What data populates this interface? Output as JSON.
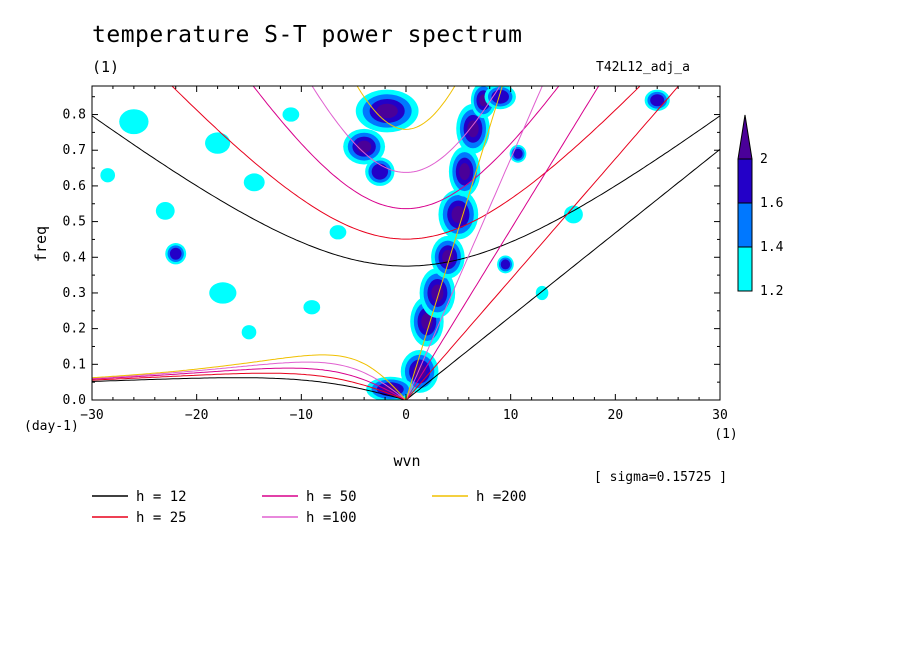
{
  "header": {
    "title": "temperature S-T power spectrum",
    "unit": "(1)",
    "run": "T42L12_adj_a",
    "sigma": "[ sigma=0.15725 ]"
  },
  "colors": {
    "h12": "#000000",
    "h25": "#e8001c",
    "h50": "#d8008c",
    "h100": "#e060d0",
    "h200": "#f0c000",
    "level_1": "#00ffff",
    "level_2": "#0078ff",
    "level_3": "#2300c8",
    "level_4": "#4a0099"
  },
  "chart_data": {
    "type": "heatmap",
    "xlabel": "wvn",
    "ylabel": "freq",
    "x_unit": "(1)",
    "y_unit": "(day-1)",
    "xlim": [
      -30,
      30
    ],
    "ylim": [
      0,
      0.88
    ],
    "x_ticks": [
      -30,
      -20,
      -10,
      0,
      10,
      20,
      30
    ],
    "y_ticks": [
      0.0,
      0.1,
      0.2,
      0.3,
      0.4,
      0.5,
      0.6,
      0.7,
      0.8
    ],
    "colorbar": {
      "levels": [
        "1.2",
        "1.4",
        "1.6",
        "2"
      ],
      "colors": [
        "#00ffff",
        "#0078ff",
        "#2300c8",
        "#4a0099"
      ]
    },
    "series": [
      {
        "name": "h = 12",
        "h": 12
      },
      {
        "name": "h = 25",
        "h": 25
      },
      {
        "name": "h = 50",
        "h": 50
      },
      {
        "name": "h =100",
        "h": 100
      },
      {
        "name": "h =200",
        "h": 200
      }
    ],
    "contour_patches": [
      {
        "x": 1.3,
        "y": 0.08,
        "rx": 1.8,
        "ry": 0.06,
        "level": 4
      },
      {
        "x": -1.5,
        "y": 0.03,
        "rx": 2.3,
        "ry": 0.035,
        "level": 4
      },
      {
        "x": 2.0,
        "y": 0.22,
        "rx": 1.6,
        "ry": 0.07,
        "level": 4
      },
      {
        "x": 3.0,
        "y": 0.3,
        "rx": 1.7,
        "ry": 0.07,
        "level": 4
      },
      {
        "x": 4.0,
        "y": 0.4,
        "rx": 1.6,
        "ry": 0.06,
        "level": 4
      },
      {
        "x": 5.0,
        "y": 0.52,
        "rx": 1.9,
        "ry": 0.07,
        "level": 4
      },
      {
        "x": 5.6,
        "y": 0.64,
        "rx": 1.5,
        "ry": 0.07,
        "level": 4
      },
      {
        "x": 6.4,
        "y": 0.76,
        "rx": 1.6,
        "ry": 0.07,
        "level": 4
      },
      {
        "x": 7.4,
        "y": 0.84,
        "rx": 1.2,
        "ry": 0.05,
        "level": 4
      },
      {
        "x": -1.8,
        "y": 0.81,
        "rx": 3.0,
        "ry": 0.06,
        "level": 4
      },
      {
        "x": -4.0,
        "y": 0.71,
        "rx": 2.0,
        "ry": 0.05,
        "level": 4
      },
      {
        "x": -2.5,
        "y": 0.64,
        "rx": 1.4,
        "ry": 0.04,
        "level": 3
      },
      {
        "x": 9.0,
        "y": 0.85,
        "rx": 1.5,
        "ry": 0.035,
        "level": 3
      },
      {
        "x": 10.7,
        "y": 0.69,
        "rx": 0.8,
        "ry": 0.025,
        "level": 3
      },
      {
        "x": 9.5,
        "y": 0.38,
        "rx": 0.8,
        "ry": 0.025,
        "level": 3
      },
      {
        "x": -22.0,
        "y": 0.41,
        "rx": 1.0,
        "ry": 0.03,
        "level": 3
      },
      {
        "x": 24.0,
        "y": 0.84,
        "rx": 1.2,
        "ry": 0.03,
        "level": 3
      },
      {
        "x": -26.0,
        "y": 0.78,
        "rx": 1.4,
        "ry": 0.035,
        "level": 1
      },
      {
        "x": -18.0,
        "y": 0.72,
        "rx": 1.2,
        "ry": 0.03,
        "level": 1
      },
      {
        "x": -14.5,
        "y": 0.61,
        "rx": 1.0,
        "ry": 0.025,
        "level": 1
      },
      {
        "x": -23.0,
        "y": 0.53,
        "rx": 0.9,
        "ry": 0.025,
        "level": 1
      },
      {
        "x": -17.5,
        "y": 0.3,
        "rx": 1.3,
        "ry": 0.03,
        "level": 1
      },
      {
        "x": -9.0,
        "y": 0.26,
        "rx": 0.8,
        "ry": 0.02,
        "level": 1
      },
      {
        "x": 16.0,
        "y": 0.52,
        "rx": 0.9,
        "ry": 0.025,
        "level": 1
      },
      {
        "x": -6.5,
        "y": 0.47,
        "rx": 0.8,
        "ry": 0.02,
        "level": 1
      },
      {
        "x": -28.5,
        "y": 0.63,
        "rx": 0.7,
        "ry": 0.02,
        "level": 1
      },
      {
        "x": -11.0,
        "y": 0.8,
        "rx": 0.8,
        "ry": 0.02,
        "level": 1
      },
      {
        "x": -15.0,
        "y": 0.19,
        "rx": 0.7,
        "ry": 0.02,
        "level": 1
      },
      {
        "x": 13.0,
        "y": 0.3,
        "rx": 0.6,
        "ry": 0.02,
        "level": 1
      }
    ]
  }
}
